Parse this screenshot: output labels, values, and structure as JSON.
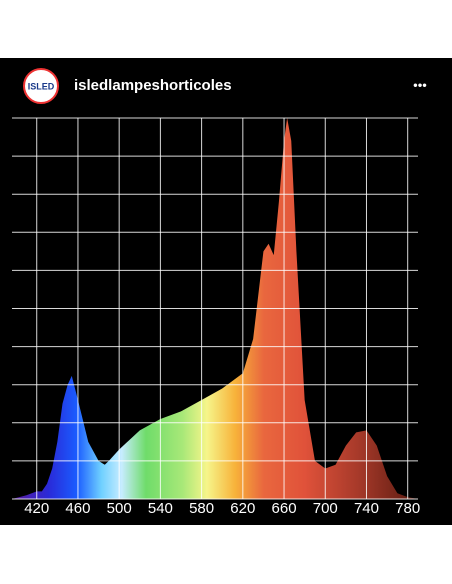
{
  "header": {
    "logo_text": "ISLED",
    "username": "isledlampeshorticoles",
    "menu": "•••"
  },
  "chart_data": {
    "type": "area",
    "x": [
      396,
      410,
      420,
      425,
      430,
      435,
      440,
      445,
      450,
      454,
      460,
      470,
      480,
      486,
      490,
      500,
      520,
      540,
      560,
      580,
      600,
      620,
      630,
      640,
      645,
      650,
      655,
      660,
      663,
      667,
      672,
      680,
      690,
      700,
      710,
      720,
      730,
      740,
      750,
      760,
      770,
      780,
      790
    ],
    "values": [
      0,
      0.1,
      0.2,
      0.2,
      0.4,
      0.8,
      1.5,
      2.5,
      3.0,
      3.23,
      2.6,
      1.5,
      1.0,
      0.9,
      1.0,
      1.3,
      1.8,
      2.1,
      2.3,
      2.6,
      2.9,
      3.3,
      4.2,
      6.5,
      6.7,
      6.4,
      7.8,
      9.4,
      10,
      9.4,
      6.5,
      2.6,
      1.0,
      0.8,
      0.9,
      1.4,
      1.75,
      1.8,
      1.4,
      0.6,
      0.15,
      0.05,
      0
    ],
    "xlim": [
      396,
      790
    ],
    "xticks": [
      420,
      460,
      500,
      540,
      580,
      620,
      660,
      700,
      740,
      780
    ],
    "ylim": [
      0,
      10
    ],
    "yticks": [
      0,
      1,
      2,
      3,
      4,
      5,
      6,
      7,
      8,
      9,
      10
    ],
    "grid": true
  }
}
